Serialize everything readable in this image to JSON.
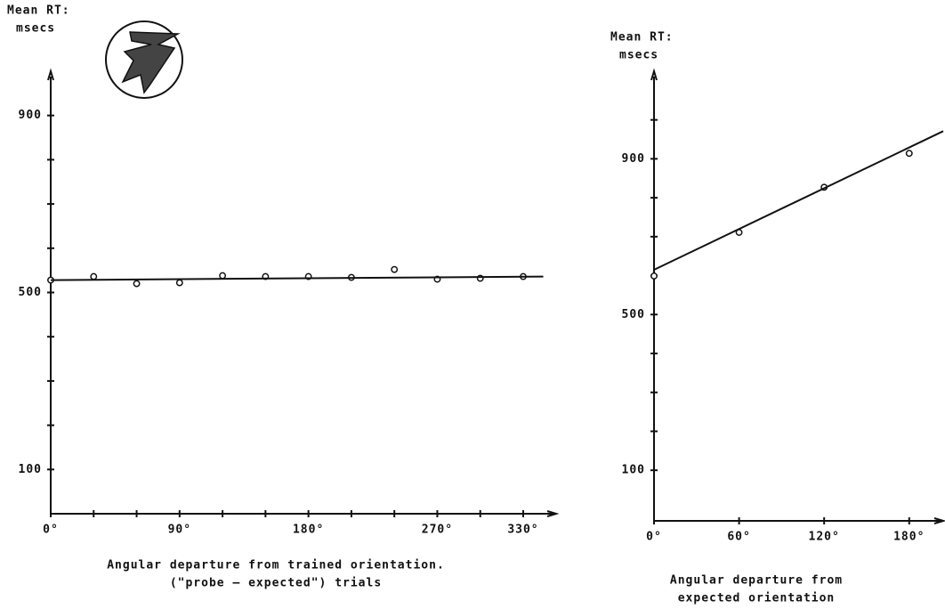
{
  "chart_data": [
    {
      "type": "scatter",
      "ylabel": [
        "Mean RT:",
        "msecs"
      ],
      "xlabel": [
        "Angular departure from trained orientation.",
        "(\"probe — expected\") trials"
      ],
      "xlim": [
        0,
        353
      ],
      "ylim": [
        0,
        1000
      ],
      "xticks": [
        {
          "value": 0,
          "label": "0°"
        },
        {
          "value": 90,
          "label": "90°"
        },
        {
          "value": 180,
          "label": "180°"
        },
        {
          "value": 270,
          "label": "270°"
        },
        {
          "value": 330,
          "label": "330°"
        }
      ],
      "yticks": [
        100,
        500,
        900
      ],
      "x_minor_ticks": [
        0,
        30,
        60,
        90,
        120,
        150,
        180,
        210,
        240,
        270,
        300,
        330
      ],
      "y_minor_ticks": [
        100,
        200,
        300,
        400,
        500,
        600,
        700,
        800,
        900
      ],
      "color": "#111111",
      "series": [
        {
          "mode": "markers",
          "x": [
            0,
            30,
            60,
            90,
            120,
            150,
            180,
            210,
            240,
            270,
            300,
            330
          ],
          "values": [
            528,
            536,
            520,
            522,
            538,
            536,
            536,
            534,
            552,
            530,
            532,
            536
          ]
        },
        {
          "mode": "line",
          "x": [
            0,
            344
          ],
          "values": [
            528,
            536
          ]
        }
      ]
    },
    {
      "type": "scatter",
      "ylabel": [
        "Mean RT:",
        "msecs"
      ],
      "xlabel": [
        "Angular departure from",
        "expected orientation"
      ],
      "xlim": [
        0,
        204
      ],
      "ylim": [
        -30,
        1125
      ],
      "xticks": [
        {
          "value": 0,
          "label": "0°"
        },
        {
          "value": 60,
          "label": "60°"
        },
        {
          "value": 120,
          "label": "120°"
        },
        {
          "value": 180,
          "label": "180°"
        }
      ],
      "yticks": [
        100,
        500,
        900
      ],
      "x_minor_ticks": [
        0,
        60,
        120,
        180
      ],
      "y_minor_ticks": [
        100,
        200,
        300,
        400,
        500,
        600,
        700,
        800,
        900,
        1000
      ],
      "color": "#111111",
      "series": [
        {
          "mode": "markers",
          "x": [
            0,
            60,
            120,
            180
          ],
          "values": [
            599,
            711,
            827,
            914
          ]
        },
        {
          "mode": "line",
          "x": [
            0,
            204
          ],
          "values": [
            615,
            971
          ]
        }
      ]
    }
  ]
}
